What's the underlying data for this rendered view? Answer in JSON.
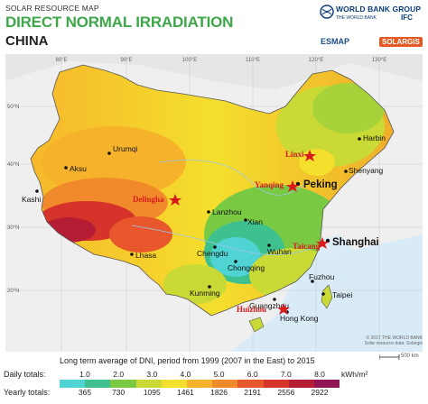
{
  "header": {
    "superscript": "SOLAR RESOURCE MAP",
    "title": "DIRECT NORMAL IRRADIATION",
    "country": "CHINA"
  },
  "logos": {
    "wbg": "WORLD BANK GROUP",
    "wb_sub": "THE WORLD BANK",
    "ifc": "IFC",
    "esmap": "ESMAP",
    "solargis": "SOLARGIS"
  },
  "grid": {
    "longitudes": [
      "80°E",
      "90°E",
      "100°E",
      "110°E",
      "120°E",
      "130°E"
    ],
    "latitudes": [
      "50°N",
      "40°N",
      "30°N",
      "20°N"
    ]
  },
  "cities": {
    "urumqi": "Urumqi",
    "aksu": "Aksu",
    "kashi": "Kashi",
    "harbin": "Harbin",
    "shenyang": "Shenyang",
    "peking": "Peking",
    "lanzhou": "Lanzhou",
    "xian": "Xian",
    "chengdu": "Chengdu",
    "wuhan": "Wuhan",
    "shanghai": "Shanghai",
    "chongqing": "Chongqing",
    "lhasa": "Lhasa",
    "kunming": "Kunming",
    "fuzhou": "Fuzhou",
    "taipei": "Taipei",
    "guangzhou": "Guangzhou",
    "hongkong": "Hong Kong"
  },
  "markers": {
    "linxi": "Linxi",
    "yanqing": "Yanqing",
    "delingha": "Delingha",
    "taicang": "Taicang",
    "huizhou": "Huizhou"
  },
  "copyright": {
    "line1": "© 2017 THE WORLD BANK",
    "line2": "Solar resource data: Solargis"
  },
  "scale": {
    "label": "500 km"
  },
  "legend": {
    "title": "Long term average of DNI, period from 1999 (2007 in the East) to 2015",
    "daily_label": "Daily totals:",
    "yearly_label": "Yearly totals:",
    "daily_ticks": [
      "1.0",
      "2.0",
      "3.0",
      "4.0",
      "5.0",
      "6.0",
      "7.0",
      "8.0"
    ],
    "yearly_ticks": [
      "365",
      "730",
      "1095",
      "1461",
      "1826",
      "2191",
      "2556",
      "2922"
    ],
    "unit": "kWh/m²",
    "colors": [
      "#4fd3d3",
      "#3fc18f",
      "#7ac943",
      "#c9d935",
      "#f4df2d",
      "#f7b22b",
      "#f08a2a",
      "#e8572b",
      "#d6342b",
      "#b51d35",
      "#8f1652"
    ]
  }
}
